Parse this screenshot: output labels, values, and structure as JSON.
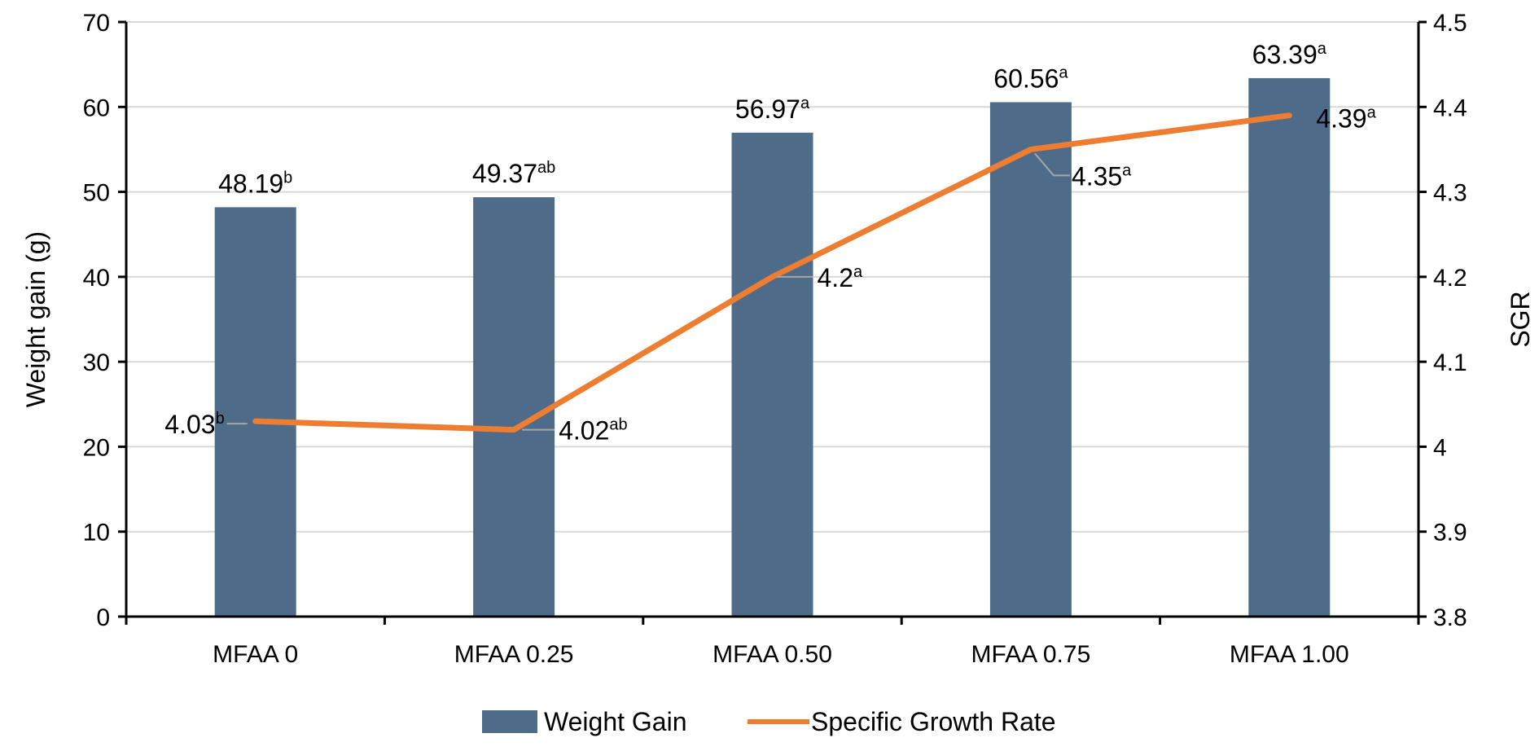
{
  "chart_data": {
    "type": "bar",
    "title": "",
    "categories": [
      "MFAA 0",
      "MFAA 0.25",
      "MFAA 0.50",
      "MFAA 0.75",
      "MFAA 1.00"
    ],
    "series": [
      {
        "name": "Weight Gain",
        "type": "bar",
        "axis": "left",
        "color": "#4f6b8a",
        "values": [
          48.19,
          49.37,
          56.97,
          60.56,
          63.39
        ],
        "labels": [
          "48.19",
          "49.37",
          "56.97",
          "60.56",
          "63.39"
        ],
        "superscripts": [
          "b",
          "ab",
          "a",
          "a",
          "a"
        ]
      },
      {
        "name": "Specific Growth Rate",
        "type": "line",
        "axis": "right",
        "color": "#ed7d31",
        "values": [
          4.03,
          4.02,
          4.2,
          4.35,
          4.39
        ],
        "labels": [
          "4.03",
          "4.02",
          "4.2",
          "4.35",
          "4.39"
        ],
        "superscripts": [
          "b",
          "ab",
          "a",
          "a",
          "a"
        ]
      }
    ],
    "ylabel": "Weight gain (g)",
    "y2label": "SGR",
    "ylim": [
      0,
      70
    ],
    "yticks": [
      "0",
      "10",
      "20",
      "30",
      "40",
      "50",
      "60",
      "70"
    ],
    "y2lim": [
      3.8,
      4.5
    ],
    "y2ticks": [
      "3.8",
      "3.9",
      "4",
      "4.1",
      "4.2",
      "4.3",
      "4.4",
      "4.5"
    ],
    "grid": true,
    "legend": "bottom-center",
    "colors": {
      "grid": "#d9d9d9",
      "axis": "#000000",
      "leader": "#a6a6a6"
    }
  }
}
